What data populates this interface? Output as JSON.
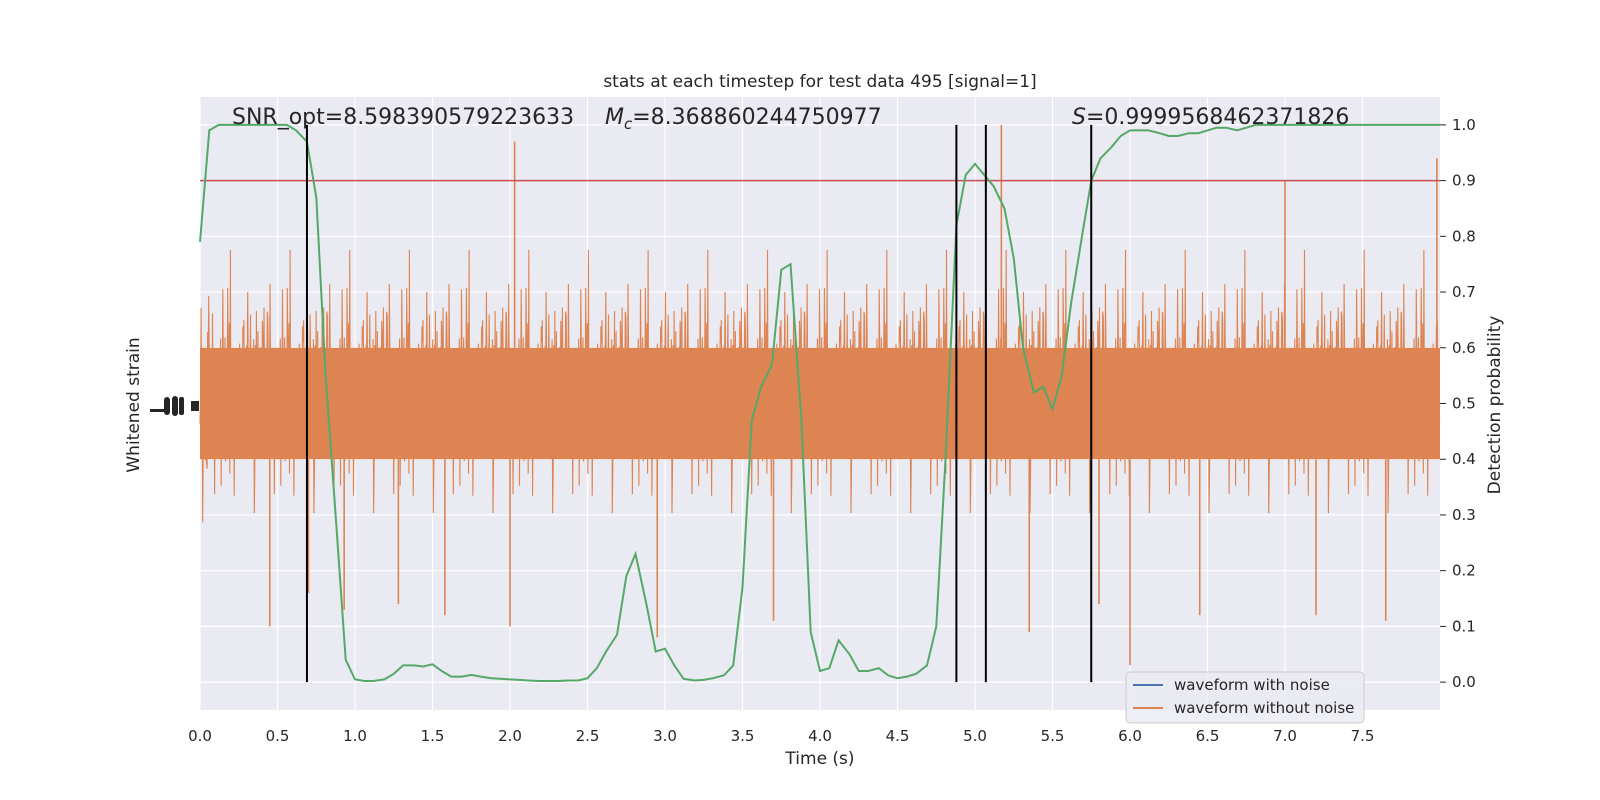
{
  "chart_data": {
    "type": "line",
    "title": "stats at each timestep for test data 495 [signal=1]",
    "xlabel": "Time (s)",
    "ylabel_left": "Whitened strain",
    "ylabel_right": "Detection probability",
    "xlim": [
      0.0,
      8.0
    ],
    "ylim_right": [
      -0.05,
      1.05
    ],
    "grid": true,
    "background_color": "#eaeaf2",
    "x_ticks": [
      "0.0",
      "0.5",
      "1.0",
      "1.5",
      "2.0",
      "2.5",
      "3.0",
      "3.5",
      "4.0",
      "4.5",
      "5.0",
      "5.5",
      "6.0",
      "6.5",
      "7.0",
      "7.5"
    ],
    "x_tick_values": [
      0.0,
      0.5,
      1.0,
      1.5,
      2.0,
      2.5,
      3.0,
      3.5,
      4.0,
      4.5,
      5.0,
      5.5,
      6.0,
      6.5,
      7.0,
      7.5
    ],
    "y_right_ticks": [
      "0.0",
      "0.1",
      "0.2",
      "0.3",
      "0.4",
      "0.5",
      "0.6",
      "0.7",
      "0.8",
      "0.9",
      "1.0"
    ],
    "y_right_tick_values": [
      0.0,
      0.1,
      0.2,
      0.3,
      0.4,
      0.5,
      0.6,
      0.7,
      0.8,
      0.9,
      1.0
    ],
    "annotations": [
      {
        "key": "snr",
        "text": "SNR_opt=8.598390579223633"
      },
      {
        "key": "mc_symbol",
        "text": "M"
      },
      {
        "key": "mc_sub",
        "text": "c"
      },
      {
        "key": "mc_value",
        "text": "=8.368860244750977"
      },
      {
        "key": "s_symbol",
        "text": "S"
      },
      {
        "key": "s_value",
        "text": "=0.9999568462371826"
      }
    ],
    "threshold": {
      "y": 0.9,
      "color": "#c44e52"
    },
    "vertical_lines": [
      0.69,
      4.88,
      5.07,
      5.75
    ],
    "vertical_line_color": "#000000",
    "legend": {
      "placement": "lower-right",
      "entries": [
        {
          "label": "waveform with noise",
          "color": "#4c72b0"
        },
        {
          "label": "waveform without noise",
          "color": "#dd8452"
        }
      ]
    },
    "noise_series": {
      "name": "waveform without noise",
      "color": "#dd8452",
      "center": 0.5,
      "core_half_width": 0.1,
      "typical_half_width": 0.18,
      "spikes": [
        {
          "x": 0.45,
          "y": 0.1
        },
        {
          "x": 0.7,
          "y": 0.16
        },
        {
          "x": 0.93,
          "y": 0.13
        },
        {
          "x": 1.28,
          "y": 0.14
        },
        {
          "x": 1.58,
          "y": 0.12
        },
        {
          "x": 2.0,
          "y": 0.1
        },
        {
          "x": 2.03,
          "y": 0.97
        },
        {
          "x": 2.95,
          "y": 0.08
        },
        {
          "x": 3.7,
          "y": 0.11
        },
        {
          "x": 5.17,
          "y": 1.0
        },
        {
          "x": 5.35,
          "y": 0.09
        },
        {
          "x": 5.8,
          "y": 0.14
        },
        {
          "x": 6.0,
          "y": 0.03
        },
        {
          "x": 6.45,
          "y": 0.12
        },
        {
          "x": 7.0,
          "y": 0.9
        },
        {
          "x": 7.2,
          "y": 0.12
        },
        {
          "x": 7.65,
          "y": 0.11
        },
        {
          "x": 7.98,
          "y": 0.94
        }
      ]
    },
    "series": [
      {
        "name": "Detection probability",
        "color": "#55a868",
        "x": [
          0.0,
          0.06,
          0.12,
          0.19,
          0.25,
          0.31,
          0.38,
          0.44,
          0.5,
          0.56,
          0.62,
          0.69,
          0.75,
          0.81,
          0.88,
          0.94,
          1.0,
          1.06,
          1.12,
          1.19,
          1.25,
          1.31,
          1.38,
          1.44,
          1.5,
          1.56,
          1.62,
          1.69,
          1.75,
          1.81,
          1.88,
          1.94,
          2.0,
          2.06,
          2.12,
          2.19,
          2.25,
          2.31,
          2.38,
          2.44,
          2.5,
          2.56,
          2.62,
          2.69,
          2.75,
          2.81,
          2.88,
          2.94,
          3.0,
          3.06,
          3.12,
          3.19,
          3.25,
          3.31,
          3.38,
          3.44,
          3.5,
          3.56,
          3.62,
          3.69,
          3.75,
          3.81,
          3.88,
          3.94,
          4.0,
          4.06,
          4.12,
          4.19,
          4.25,
          4.31,
          4.38,
          4.44,
          4.5,
          4.56,
          4.62,
          4.69,
          4.75,
          4.81,
          4.88,
          4.94,
          5.0,
          5.06,
          5.12,
          5.19,
          5.25,
          5.31,
          5.38,
          5.44,
          5.5,
          5.56,
          5.62,
          5.69,
          5.75,
          5.81,
          5.88,
          5.94,
          6.0,
          6.06,
          6.12,
          6.19,
          6.25,
          6.31,
          6.38,
          6.44,
          6.5,
          6.56,
          6.62,
          6.69,
          6.75,
          6.81,
          6.88,
          6.94,
          7.0,
          7.06,
          7.12,
          7.19,
          7.25,
          7.31,
          7.38,
          7.44,
          7.5,
          7.56,
          7.62,
          7.69,
          7.75,
          7.81,
          7.88,
          7.94,
          8.0
        ],
        "y": [
          0.79,
          0.99,
          1.0,
          1.0,
          1.0,
          1.0,
          1.0,
          1.0,
          1.0,
          1.0,
          0.99,
          0.97,
          0.87,
          0.55,
          0.28,
          0.04,
          0.005,
          0.002,
          0.002,
          0.005,
          0.015,
          0.03,
          0.03,
          0.028,
          0.032,
          0.02,
          0.01,
          0.01,
          0.013,
          0.01,
          0.007,
          0.006,
          0.005,
          0.004,
          0.003,
          0.002,
          0.002,
          0.002,
          0.003,
          0.003,
          0.007,
          0.025,
          0.055,
          0.085,
          0.19,
          0.23,
          0.14,
          0.055,
          0.06,
          0.03,
          0.006,
          0.003,
          0.004,
          0.007,
          0.012,
          0.03,
          0.17,
          0.47,
          0.53,
          0.57,
          0.74,
          0.75,
          0.47,
          0.09,
          0.02,
          0.025,
          0.075,
          0.05,
          0.02,
          0.02,
          0.025,
          0.012,
          0.007,
          0.01,
          0.015,
          0.03,
          0.1,
          0.4,
          0.82,
          0.91,
          0.93,
          0.91,
          0.89,
          0.85,
          0.76,
          0.6,
          0.52,
          0.53,
          0.49,
          0.55,
          0.68,
          0.8,
          0.9,
          0.94,
          0.96,
          0.98,
          0.99,
          0.99,
          0.99,
          0.985,
          0.98,
          0.98,
          0.985,
          0.985,
          0.99,
          0.995,
          0.995,
          0.99,
          0.995,
          1.0,
          1.0,
          1.0,
          1.0,
          1.0,
          1.0,
          1.0,
          1.0,
          1.0,
          1.0,
          1.0,
          1.0,
          1.0,
          1.0,
          1.0,
          1.0,
          1.0,
          1.0,
          1.0,
          1.0
        ]
      }
    ]
  }
}
